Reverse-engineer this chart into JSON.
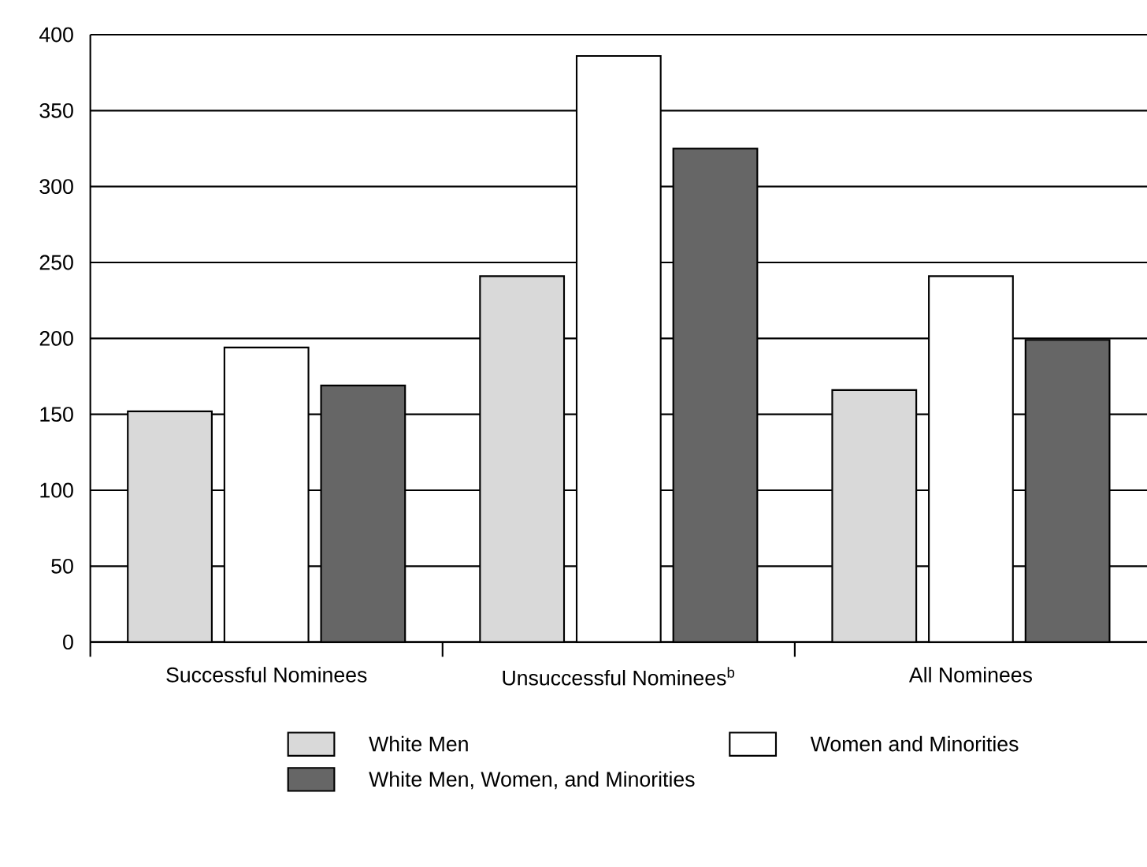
{
  "chart_data": {
    "type": "bar",
    "categories": [
      "Successful Nominees",
      "Unsuccessful Nominees$^{b}$",
      "All Nominees"
    ],
    "series": [
      {
        "name": "White Men",
        "color": "#d9d9d9",
        "values": [
          152,
          241,
          166
        ]
      },
      {
        "name": "Women and Minorities",
        "color": "#ffffff",
        "values": [
          194,
          386,
          241
        ]
      },
      {
        "name": "White Men, Women, and Minorities",
        "color": "#666666",
        "values": [
          169,
          325,
          199
        ]
      }
    ],
    "ylim": [
      0,
      400
    ],
    "yticks": [
      0,
      50,
      100,
      150,
      200,
      250,
      300,
      350,
      400
    ],
    "grid": "y",
    "legend": "bottom"
  }
}
